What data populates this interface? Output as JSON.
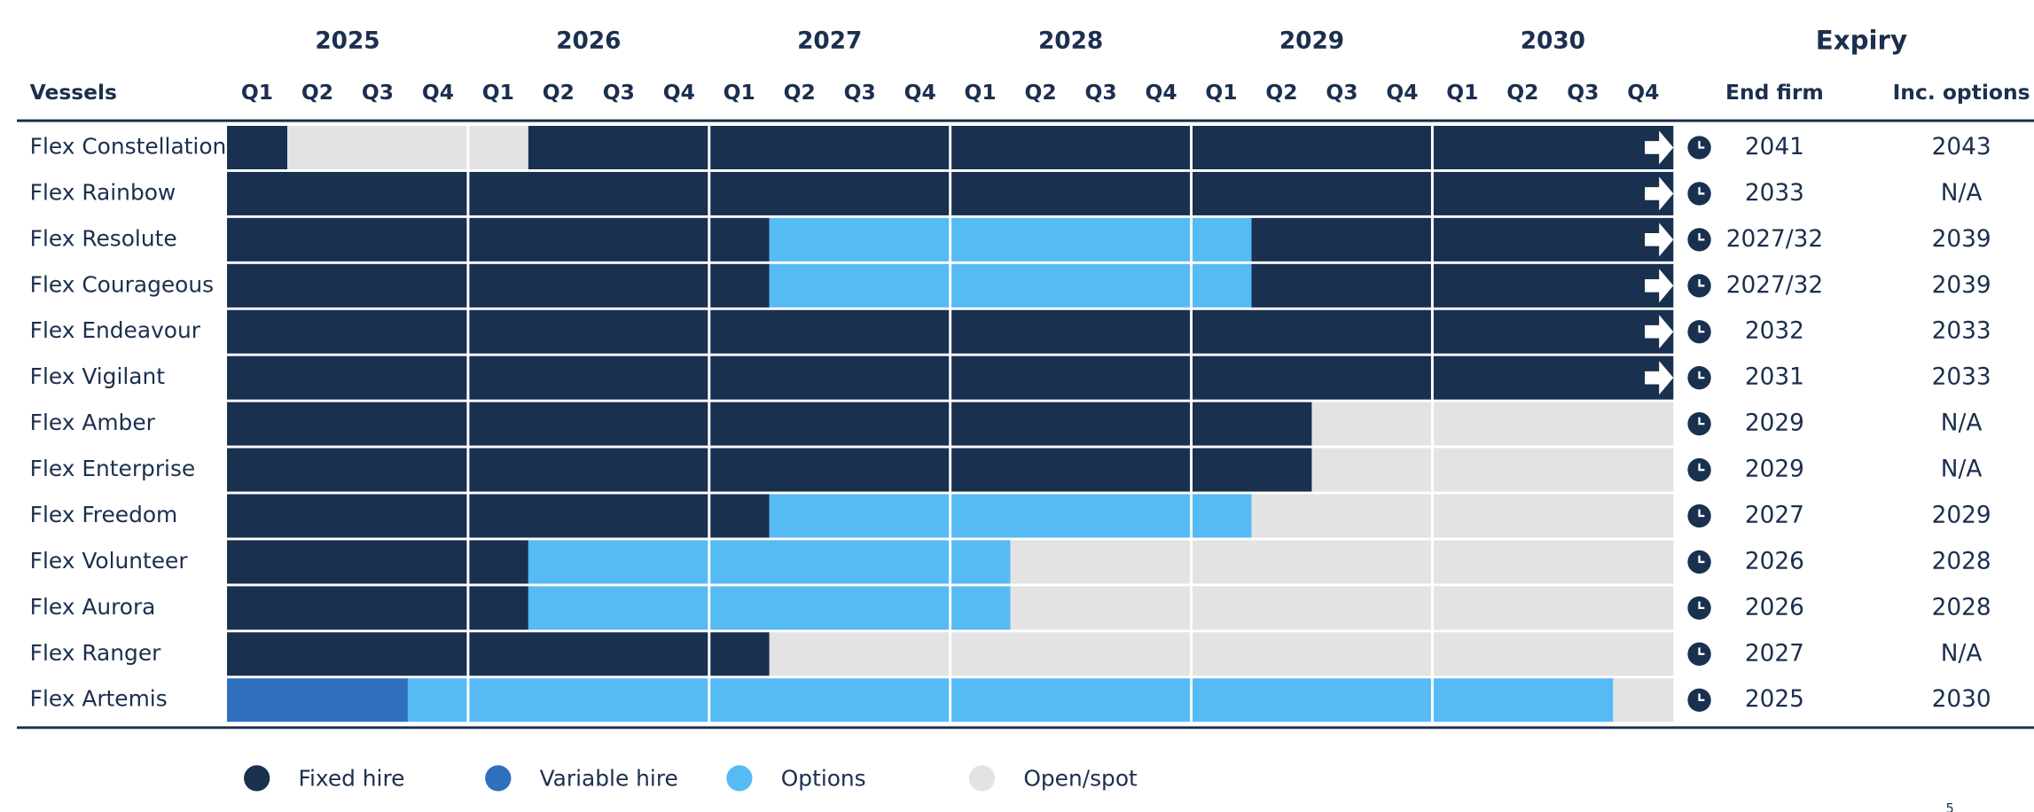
{
  "chart_data": {
    "type": "timeline",
    "vessels_label": "Vessels",
    "years": [
      "2025",
      "2026",
      "2027",
      "2028",
      "2029",
      "2030"
    ],
    "quarter_labels": [
      "Q1",
      "Q2",
      "Q3",
      "Q4"
    ],
    "expiry_title": "Expiry",
    "expiry_columns": [
      "End firm",
      "Inc. options"
    ],
    "xlim": [
      0,
      24
    ],
    "statuses": [
      {
        "name": "Fixed hire",
        "color": "#19304f"
      },
      {
        "name": "Variable hire",
        "color": "#2f6fbd"
      },
      {
        "name": "Options",
        "color": "#56baf5"
      },
      {
        "name": "Open/spot",
        "color": "#e3e3e3"
      }
    ],
    "rows": [
      {
        "name": "Flex Constellation",
        "arrow": true,
        "end_firm": "2041",
        "inc_options": "2043",
        "segments": [
          {
            "status": 0,
            "start": 0,
            "end": 1
          },
          {
            "status": 3,
            "start": 1,
            "end": 5
          },
          {
            "status": 0,
            "start": 5,
            "end": 24
          }
        ]
      },
      {
        "name": "Flex Rainbow",
        "arrow": true,
        "end_firm": "2033",
        "inc_options": "N/A",
        "segments": [
          {
            "status": 0,
            "start": 0,
            "end": 24
          }
        ]
      },
      {
        "name": "Flex Resolute",
        "arrow": true,
        "end_firm": "2027/32",
        "inc_options": "2039",
        "segments": [
          {
            "status": 0,
            "start": 0,
            "end": 9
          },
          {
            "status": 2,
            "start": 9,
            "end": 17
          },
          {
            "status": 0,
            "start": 17,
            "end": 24
          }
        ]
      },
      {
        "name": "Flex Courageous",
        "arrow": true,
        "end_firm": "2027/32",
        "inc_options": "2039",
        "segments": [
          {
            "status": 0,
            "start": 0,
            "end": 9
          },
          {
            "status": 2,
            "start": 9,
            "end": 17
          },
          {
            "status": 0,
            "start": 17,
            "end": 24
          }
        ]
      },
      {
        "name": "Flex Endeavour",
        "arrow": true,
        "end_firm": "2032",
        "inc_options": "2033",
        "segments": [
          {
            "status": 0,
            "start": 0,
            "end": 24
          }
        ]
      },
      {
        "name": "Flex Vigilant",
        "arrow": true,
        "end_firm": "2031",
        "inc_options": "2033",
        "segments": [
          {
            "status": 0,
            "start": 0,
            "end": 24
          }
        ]
      },
      {
        "name": "Flex Amber",
        "arrow": false,
        "end_firm": "2029",
        "inc_options": "N/A",
        "segments": [
          {
            "status": 0,
            "start": 0,
            "end": 18
          },
          {
            "status": 3,
            "start": 18,
            "end": 24
          }
        ]
      },
      {
        "name": "Flex Enterprise",
        "arrow": false,
        "end_firm": "2029",
        "inc_options": "N/A",
        "segments": [
          {
            "status": 0,
            "start": 0,
            "end": 18
          },
          {
            "status": 3,
            "start": 18,
            "end": 24
          }
        ]
      },
      {
        "name": "Flex Freedom",
        "arrow": false,
        "end_firm": "2027",
        "inc_options": "2029",
        "segments": [
          {
            "status": 0,
            "start": 0,
            "end": 9
          },
          {
            "status": 2,
            "start": 9,
            "end": 17
          },
          {
            "status": 3,
            "start": 17,
            "end": 24
          }
        ]
      },
      {
        "name": "Flex Volunteer",
        "arrow": false,
        "end_firm": "2026",
        "inc_options": "2028",
        "segments": [
          {
            "status": 0,
            "start": 0,
            "end": 5
          },
          {
            "status": 2,
            "start": 5,
            "end": 13
          },
          {
            "status": 3,
            "start": 13,
            "end": 24
          }
        ]
      },
      {
        "name": "Flex Aurora",
        "arrow": false,
        "end_firm": "2026",
        "inc_options": "2028",
        "segments": [
          {
            "status": 0,
            "start": 0,
            "end": 5
          },
          {
            "status": 2,
            "start": 5,
            "end": 13
          },
          {
            "status": 3,
            "start": 13,
            "end": 24
          }
        ]
      },
      {
        "name": "Flex Ranger",
        "arrow": false,
        "end_firm": "2027",
        "inc_options": "N/A",
        "segments": [
          {
            "status": 0,
            "start": 0,
            "end": 9
          },
          {
            "status": 3,
            "start": 9,
            "end": 24
          }
        ]
      },
      {
        "name": "Flex Artemis",
        "arrow": false,
        "end_firm": "2025",
        "inc_options": "2030",
        "segments": [
          {
            "status": 1,
            "start": 0,
            "end": 3
          },
          {
            "status": 2,
            "start": 3,
            "end": 23
          },
          {
            "status": 3,
            "start": 23,
            "end": 24
          }
        ]
      }
    ],
    "page_number": "5"
  }
}
